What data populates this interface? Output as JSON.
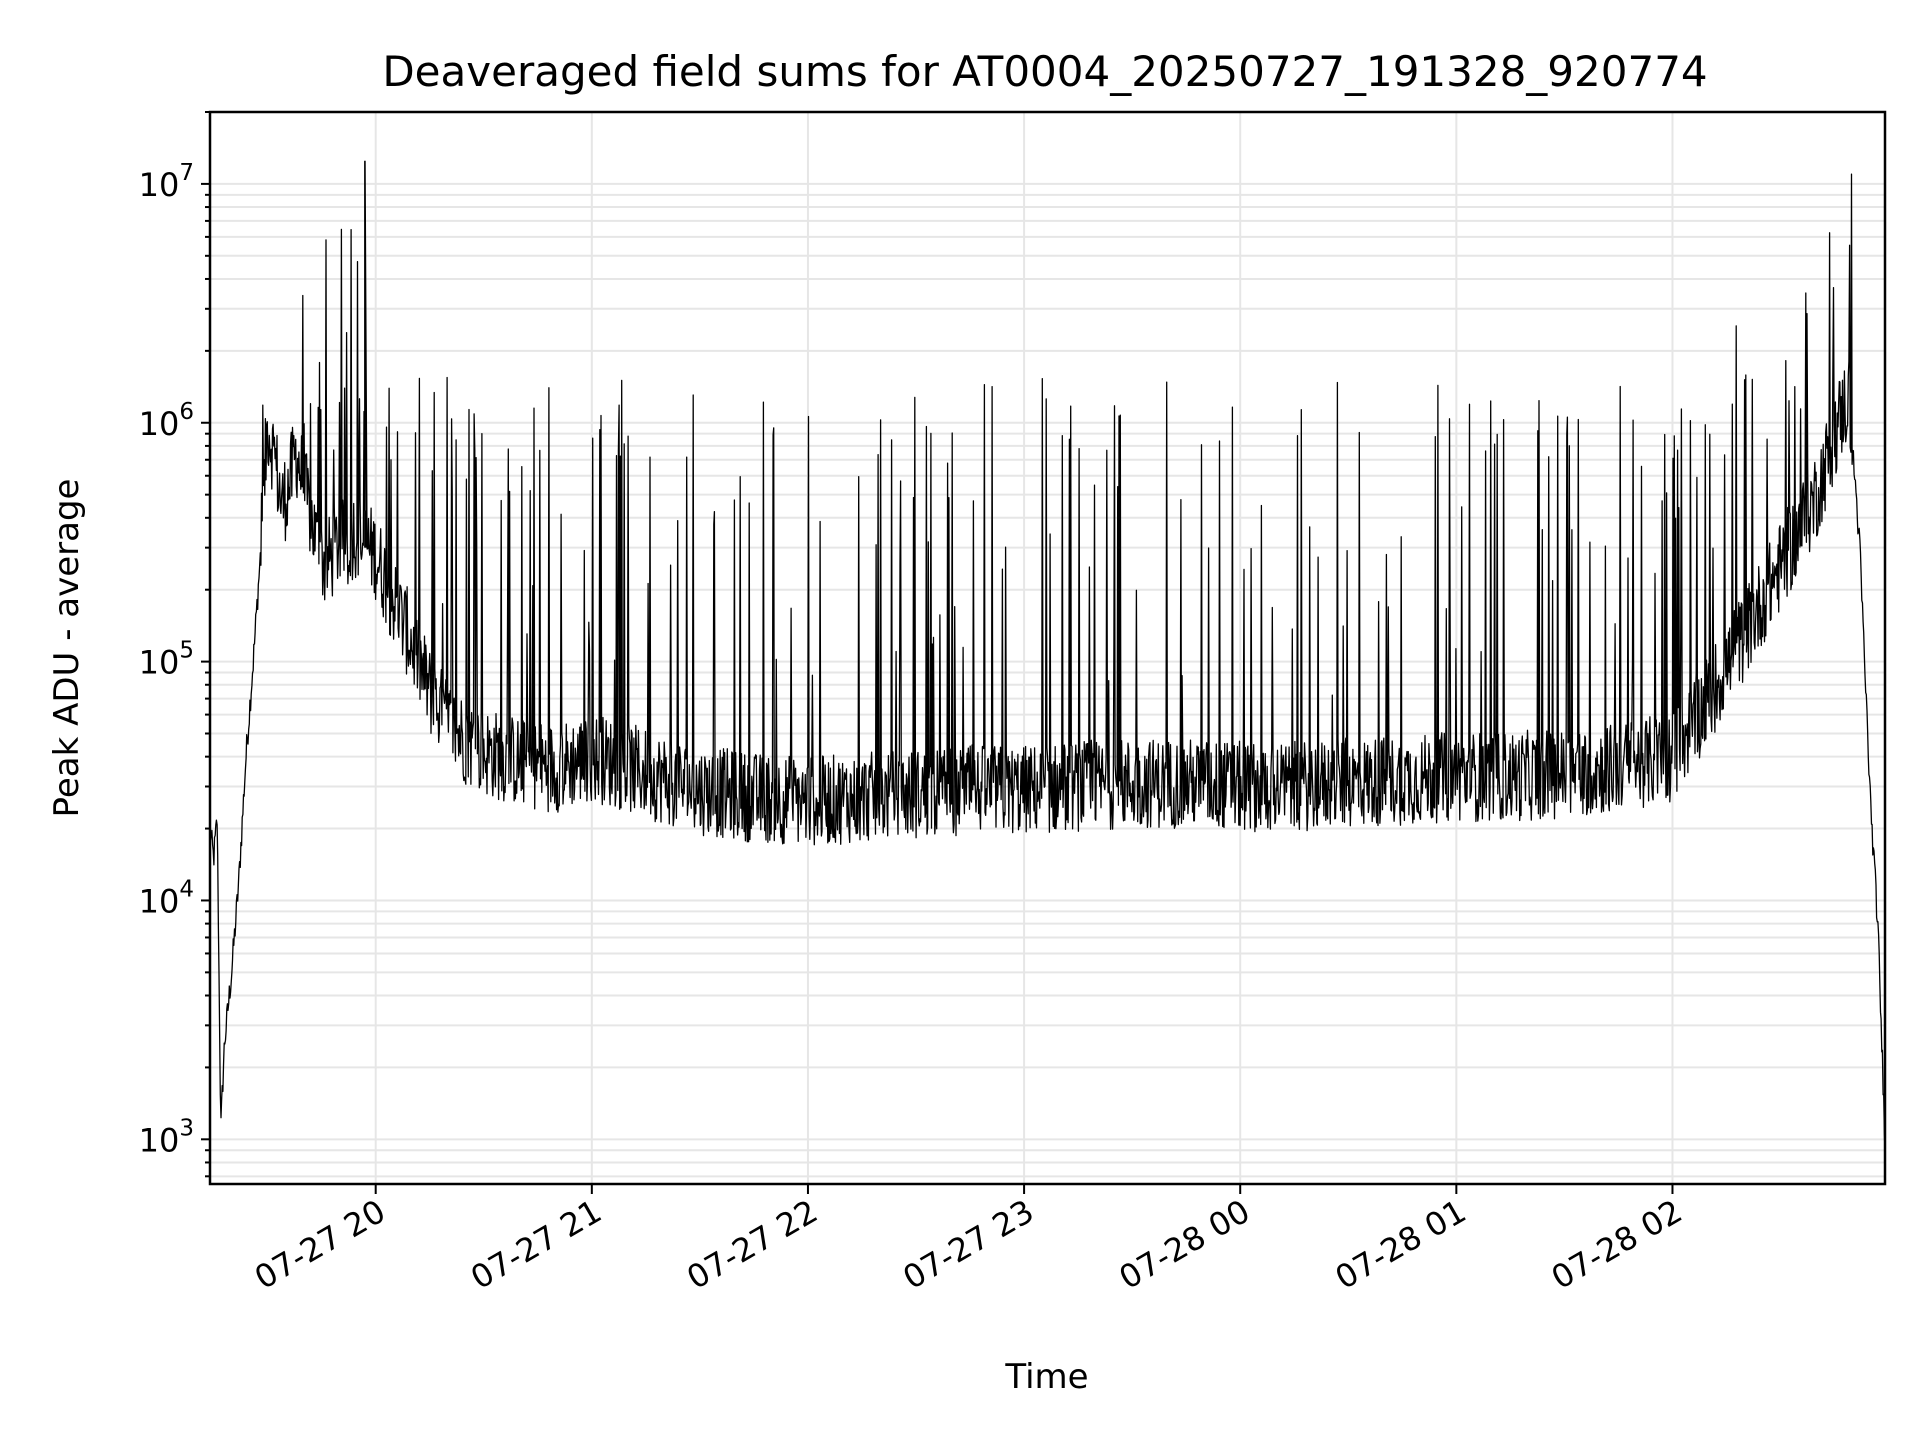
{
  "chart_data": {
    "type": "line",
    "title": "Deaveraged field sums for AT0004_20250727_191328_920774",
    "xlabel": "Time",
    "ylabel": "Peak ADU - average",
    "yscale": "log",
    "ylim": [
      650,
      20000000
    ],
    "xlim": [
      "2025-07-27 19:14",
      "2025-07-28 02:59"
    ],
    "grid": "both (major and minor)",
    "line_color": "#000000",
    "x_tick_labels": [
      "07-27 20",
      "07-27 21",
      "07-27 22",
      "07-27 23",
      "07-28 00",
      "07-28 01",
      "07-28 02"
    ],
    "x_tick_values": [
      "2025-07-27 20:00",
      "2025-07-27 21:00",
      "2025-07-27 22:00",
      "2025-07-27 23:00",
      "2025-07-28 00:00",
      "2025-07-28 01:00",
      "2025-07-28 02:00"
    ],
    "y_ticks": [
      {
        "value": 1000,
        "base": "10",
        "exp": "3"
      },
      {
        "value": 10000,
        "base": "10",
        "exp": "4"
      },
      {
        "value": 100000,
        "base": "10",
        "exp": "5"
      },
      {
        "value": 1000000,
        "base": "10",
        "exp": "6"
      },
      {
        "value": 10000000,
        "base": "10",
        "exp": "7"
      }
    ],
    "series": [
      {
        "x": [
          "2025-07-27 19:14",
          "2025-07-27 19:15",
          "2025-07-27 19:16",
          "2025-07-27 19:17",
          "2025-07-27 19:18",
          "2025-07-27 19:20",
          "2025-07-27 19:22",
          "2025-07-27 19:24",
          "2025-07-27 19:26",
          "2025-07-27 19:28",
          "2025-07-27 19:30",
          "2025-07-27 19:32",
          "2025-07-27 19:34",
          "2025-07-27 19:36",
          "2025-07-27 19:38",
          "2025-07-27 19:40",
          "2025-07-27 19:42",
          "2025-07-27 19:44",
          "2025-07-27 19:46",
          "2025-07-27 19:48",
          "2025-07-27 19:50",
          "2025-07-27 19:52",
          "2025-07-27 19:54",
          "2025-07-27 19:56",
          "2025-07-27 19:58",
          "2025-07-27 20:00",
          "2025-07-27 20:05",
          "2025-07-27 20:10",
          "2025-07-27 20:15",
          "2025-07-27 20:20",
          "2025-07-27 20:25",
          "2025-07-27 20:30",
          "2025-07-27 20:40",
          "2025-07-27 20:50",
          "2025-07-27 21:00",
          "2025-07-27 21:15",
          "2025-07-27 21:30",
          "2025-07-27 21:45",
          "2025-07-27 22:00",
          "2025-07-27 22:15",
          "2025-07-27 22:30",
          "2025-07-27 22:45",
          "2025-07-27 23:00",
          "2025-07-27 23:15",
          "2025-07-27 23:30",
          "2025-07-27 23:45",
          "2025-07-28 00:00",
          "2025-07-28 00:15",
          "2025-07-28 00:30",
          "2025-07-28 00:45",
          "2025-07-28 01:00",
          "2025-07-28 01:15",
          "2025-07-28 01:30",
          "2025-07-28 01:45",
          "2025-07-28 02:00",
          "2025-07-28 02:10",
          "2025-07-28 02:20",
          "2025-07-28 02:30",
          "2025-07-28 02:35",
          "2025-07-28 02:40",
          "2025-07-28 02:43",
          "2025-07-28 02:46",
          "2025-07-28 02:49",
          "2025-07-28 02:52",
          "2025-07-28 02:55",
          "2025-07-28 02:57",
          "2025-07-28 02:59"
        ],
        "y": [
          20000,
          15000,
          22000,
          1100,
          2500,
          5000,
          12000,
          40000,
          100000,
          280000,
          1000000,
          700000,
          450000,
          550000,
          750000,
          550000,
          400000,
          300000,
          250000,
          280000,
          320000,
          300000,
          350000,
          320000,
          300000,
          280000,
          180000,
          120000,
          75000,
          55000,
          47000,
          42000,
          38000,
          36000,
          40000,
          34000,
          29000,
          27000,
          26000,
          27000,
          28000,
          29000,
          29000,
          30000,
          31000,
          31000,
          30000,
          30000,
          31000,
          32000,
          33000,
          33000,
          34000,
          36000,
          40000,
          70000,
          130000,
          250000,
          350000,
          500000,
          700000,
          1000000,
          1300000,
          300000,
          25000,
          8000,
          1000
        ]
      }
    ]
  }
}
